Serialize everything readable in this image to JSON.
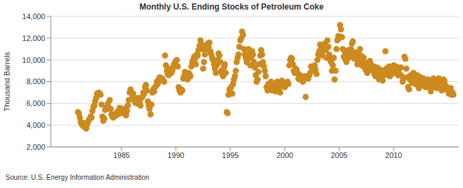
{
  "chart_data": {
    "type": "scatter",
    "title": "Monthly U.S. Ending Stocks of Petroleum Coke",
    "y_label": "Thousand Barrels",
    "annotations": [
      "Source: U.S. Energy Information Administration"
    ],
    "color": "#cc8a1f",
    "marker": "circle",
    "grid": true,
    "xlim": [
      1978.5,
      2016
    ],
    "xticks": [
      1985,
      1990,
      1995,
      2000,
      2005,
      2010
    ],
    "ylim": [
      2000,
      14000
    ],
    "yticks": [
      {
        "value": 2000,
        "label": "2,000"
      },
      {
        "value": 4000,
        "label": "4,000"
      },
      {
        "value": 6000,
        "label": "6,000"
      },
      {
        "value": 8000,
        "label": "8,000"
      },
      {
        "value": 10000,
        "label": "10,000"
      },
      {
        "value": 12000,
        "label": "12,000"
      },
      {
        "value": 14000,
        "label": "14,000"
      }
    ],
    "x": [
      1981,
      1981.08,
      1981.17,
      1981.25,
      1981.33,
      1981.42,
      1981.5,
      1981.58,
      1981.67,
      1981.75,
      1981.83,
      1981.92,
      1982,
      1982.08,
      1982.17,
      1982.25,
      1982.33,
      1982.42,
      1982.5,
      1982.58,
      1982.67,
      1982.75,
      1982.83,
      1982.92,
      1983,
      1983.08,
      1983.17,
      1983.25,
      1983.33,
      1983.42,
      1983.5,
      1983.58,
      1983.67,
      1983.75,
      1983.83,
      1983.92,
      1984,
      1984.08,
      1984.17,
      1984.25,
      1984.33,
      1984.42,
      1984.5,
      1984.58,
      1984.67,
      1984.75,
      1984.83,
      1984.92,
      1985,
      1985.08,
      1985.17,
      1985.25,
      1985.33,
      1985.42,
      1985.5,
      1985.58,
      1985.67,
      1985.75,
      1985.83,
      1985.92,
      1986,
      1986.08,
      1986.17,
      1986.25,
      1986.33,
      1986.42,
      1986.5,
      1986.58,
      1986.67,
      1986.75,
      1986.83,
      1986.92,
      1987,
      1987.08,
      1987.17,
      1987.25,
      1987.33,
      1987.42,
      1987.5,
      1987.58,
      1987.67,
      1987.75,
      1987.83,
      1987.92,
      1988,
      1988.08,
      1988.17,
      1988.25,
      1988.33,
      1988.42,
      1988.5,
      1988.58,
      1988.67,
      1988.75,
      1988.83,
      1988.92,
      1989,
      1989.08,
      1989.17,
      1989.25,
      1989.33,
      1989.42,
      1989.5,
      1989.58,
      1989.67,
      1989.75,
      1989.83,
      1989.92,
      1990,
      1990.08,
      1990.17,
      1990.25,
      1990.33,
      1990.42,
      1990.5,
      1990.58,
      1990.67,
      1990.75,
      1990.83,
      1990.92,
      1991,
      1991.08,
      1991.17,
      1991.25,
      1991.33,
      1991.42,
      1991.5,
      1991.58,
      1991.67,
      1991.75,
      1991.83,
      1991.92,
      1992,
      1992.08,
      1992.17,
      1992.25,
      1992.33,
      1992.42,
      1992.5,
      1992.58,
      1992.67,
      1992.75,
      1992.83,
      1992.92,
      1993,
      1993.08,
      1993.17,
      1993.25,
      1993.33,
      1993.42,
      1993.5,
      1993.58,
      1993.67,
      1993.75,
      1993.83,
      1993.92,
      1994,
      1994.08,
      1994.17,
      1994.25,
      1994.33,
      1994.42,
      1994.5,
      1994.58,
      1994.67,
      1994.75,
      1994.83,
      1994.92,
      1995,
      1995.08,
      1995.17,
      1995.25,
      1995.33,
      1995.42,
      1995.5,
      1995.58,
      1995.67,
      1995.75,
      1995.83,
      1995.92,
      1996,
      1996.08,
      1996.17,
      1996.25,
      1996.33,
      1996.42,
      1996.5,
      1996.58,
      1996.67,
      1996.75,
      1996.83,
      1996.92,
      1997,
      1997.08,
      1997.17,
      1997.25,
      1997.33,
      1997.42,
      1997.5,
      1997.58,
      1997.67,
      1997.75,
      1997.83,
      1997.92,
      1998,
      1998.08,
      1998.17,
      1998.25,
      1998.33,
      1998.42,
      1998.5,
      1998.58,
      1998.67,
      1998.75,
      1998.83,
      1998.92,
      1999,
      1999.08,
      1999.17,
      1999.25,
      1999.33,
      1999.42,
      1999.5,
      1999.58,
      1999.67,
      1999.75,
      1999.83,
      1999.92,
      2000,
      2000.08,
      2000.17,
      2000.25,
      2000.33,
      2000.42,
      2000.5,
      2000.58,
      2000.67,
      2000.75,
      2000.83,
      2000.92,
      2001,
      2001.08,
      2001.17,
      2001.25,
      2001.33,
      2001.42,
      2001.5,
      2001.58,
      2001.67,
      2001.75,
      2001.83,
      2001.92,
      2002,
      2002.08,
      2002.17,
      2002.25,
      2002.33,
      2002.42,
      2002.5,
      2002.58,
      2002.67,
      2002.75,
      2002.83,
      2002.92,
      2003,
      2003.08,
      2003.17,
      2003.25,
      2003.33,
      2003.42,
      2003.5,
      2003.58,
      2003.67,
      2003.75,
      2003.83,
      2003.92,
      2004,
      2004.08,
      2004.17,
      2004.25,
      2004.33,
      2004.42,
      2004.5,
      2004.58,
      2004.67,
      2004.75,
      2004.83,
      2004.92,
      2005,
      2005.08,
      2005.17,
      2005.25,
      2005.33,
      2005.42,
      2005.5,
      2005.58,
      2005.67,
      2005.75,
      2005.83,
      2005.92,
      2006,
      2006.08,
      2006.17,
      2006.25,
      2006.33,
      2006.42,
      2006.5,
      2006.58,
      2006.67,
      2006.75,
      2006.83,
      2006.92,
      2007,
      2007.08,
      2007.17,
      2007.25,
      2007.33,
      2007.42,
      2007.5,
      2007.58,
      2007.67,
      2007.75,
      2007.83,
      2007.92,
      2008,
      2008.08,
      2008.17,
      2008.25,
      2008.33,
      2008.42,
      2008.5,
      2008.58,
      2008.67,
      2008.75,
      2008.83,
      2008.92,
      2009,
      2009.08,
      2009.17,
      2009.25,
      2009.33,
      2009.42,
      2009.5,
      2009.58,
      2009.67,
      2009.75,
      2009.83,
      2009.92,
      2010,
      2010.08,
      2010.17,
      2010.25,
      2010.33,
      2010.42,
      2010.5,
      2010.58,
      2010.67,
      2010.75,
      2010.83,
      2010.92,
      2011,
      2011.08,
      2011.17,
      2011.25,
      2011.33,
      2011.42,
      2011.5,
      2011.58,
      2011.67,
      2011.75,
      2011.83,
      2011.92,
      2012,
      2012.08,
      2012.17,
      2012.25,
      2012.33,
      2012.42,
      2012.5,
      2012.58,
      2012.67,
      2012.75,
      2012.83,
      2012.92,
      2013,
      2013.08,
      2013.17,
      2013.25,
      2013.33,
      2013.42,
      2013.5,
      2013.58,
      2013.67,
      2013.75,
      2013.83,
      2013.92,
      2014,
      2014.08,
      2014.17,
      2014.25,
      2014.33,
      2014.42,
      2014.5,
      2014.58,
      2014.67,
      2014.75,
      2014.83,
      2014.92,
      2015,
      2015.08,
      2015.17,
      2015.25,
      2015.33,
      2015.42,
      2015.5
    ],
    "values": [
      5200,
      5100,
      4700,
      4300,
      4100,
      4000,
      3900,
      4200,
      3800,
      3700,
      4000,
      4300,
      4500,
      4600,
      4800,
      4700,
      5300,
      5700,
      5800,
      6200,
      6500,
      6900,
      6800,
      7000,
      6900,
      6800,
      5900,
      4800,
      4400,
      4600,
      5400,
      5600,
      5500,
      6000,
      5600,
      6300,
      5500,
      5000,
      4800,
      4700,
      4900,
      5000,
      4900,
      5200,
      5000,
      5300,
      5600,
      5100,
      5400,
      5300,
      5500,
      5200,
      5000,
      4900,
      5300,
      5800,
      6300,
      7000,
      7300,
      7000,
      6500,
      6900,
      6400,
      6100,
      6200,
      6000,
      6500,
      6300,
      6100,
      5800,
      6500,
      6600,
      7000,
      6900,
      7500,
      7700,
      7200,
      6200,
      5800,
      5500,
      5000,
      5900,
      7000,
      7300,
      7100,
      7500,
      7600,
      8000,
      7800,
      8200,
      8400,
      8100,
      8200,
      8300,
      8100,
      8000,
      10400,
      9500,
      9000,
      8700,
      8600,
      8900,
      9200,
      8800,
      9000,
      9300,
      9600,
      9800,
      9500,
      10000,
      9400,
      7500,
      7200,
      7000,
      7300,
      7200,
      8300,
      8500,
      8900,
      8600,
      8400,
      8200,
      8800,
      8700,
      8500,
      9400,
      9800,
      10000,
      10300,
      10100,
      9600,
      10500,
      10400,
      10900,
      11300,
      11800,
      11500,
      11000,
      9200,
      9800,
      10500,
      11000,
      11300,
      11500,
      11200,
      11600,
      10800,
      10500,
      10200,
      10000,
      9600,
      9200,
      8800,
      9500,
      10000,
      10600,
      10400,
      9800,
      9000,
      8700,
      8500,
      9300,
      9600,
      8800,
      5200,
      5100,
      6800,
      7300,
      7000,
      7500,
      6900,
      7800,
      8200,
      8500,
      9000,
      9800,
      10200,
      10500,
      11200,
      11800,
      12000,
      12600,
      12300,
      11000,
      10500,
      10200,
      9800,
      10000,
      11000,
      10600,
      9500,
      10200,
      10800,
      10500,
      9800,
      9300,
      8600,
      8000,
      8200,
      8900,
      9600,
      10400,
      10900,
      10500,
      9800,
      9400,
      9000,
      8500,
      7500,
      7200,
      7800,
      7400,
      7600,
      8000,
      7200,
      7500,
      7800,
      7300,
      7100,
      7600,
      8000,
      7800,
      7400,
      7000,
      7800,
      8100,
      7600,
      7900,
      7500,
      7700,
      7900,
      8000,
      7800,
      9500,
      10000,
      10200,
      10100,
      9600,
      9000,
      8800,
      9200,
      9100,
      8800,
      8300,
      8200,
      8600,
      8300,
      8400,
      8000,
      8200,
      8500,
      6600,
      8400,
      8500,
      8300,
      8600,
      8800,
      9400,
      9000,
      9300,
      9200,
      9500,
      9100,
      8700,
      10000,
      10500,
      10800,
      11400,
      11000,
      10400,
      10800,
      11300,
      11500,
      10900,
      10200,
      11800,
      11200,
      10500,
      10000,
      9800,
      9000,
      9500,
      10200,
      8200,
      9000,
      11000,
      11800,
      12200,
      12000,
      13200,
      12800,
      12100,
      11000,
      10300,
      10800,
      10000,
      9800,
      10400,
      10900,
      10200,
      10600,
      11000,
      11500,
      11700,
      10500,
      10100,
      10700,
      10300,
      9600,
      9900,
      10500,
      11000,
      10400,
      9500,
      9900,
      10200,
      9300,
      9100,
      9700,
      8800,
      9200,
      9600,
      9900,
      9400,
      9500,
      9000,
      9400,
      8700,
      8500,
      8900,
      9300,
      8600,
      8200,
      8800,
      9100,
      8400,
      8100,
      8600,
      9000,
      10800,
      9200,
      8900,
      8600,
      9400,
      8500,
      9000,
      8700,
      9300,
      9500,
      9100,
      8800,
      9400,
      9000,
      8600,
      9200,
      8700,
      9300,
      8500,
      8000,
      8300,
      10300,
      10100,
      9200,
      8400,
      7500,
      7300,
      8200,
      8600,
      7900,
      8300,
      8800,
      8000,
      7800,
      8200,
      8600,
      7600,
      7400,
      7900,
      8400,
      8100,
      7700,
      8300,
      8000,
      7500,
      8000,
      7600,
      8200,
      7900,
      7400,
      7100,
      7700,
      8100,
      8300,
      7500,
      7800,
      8100,
      7400,
      7900,
      8300,
      8000,
      7600,
      7200,
      7800,
      8200,
      8100,
      7700,
      7300,
      7500,
      7200,
      6900,
      7100,
      7400,
      6800,
      7000,
      6800
    ]
  }
}
